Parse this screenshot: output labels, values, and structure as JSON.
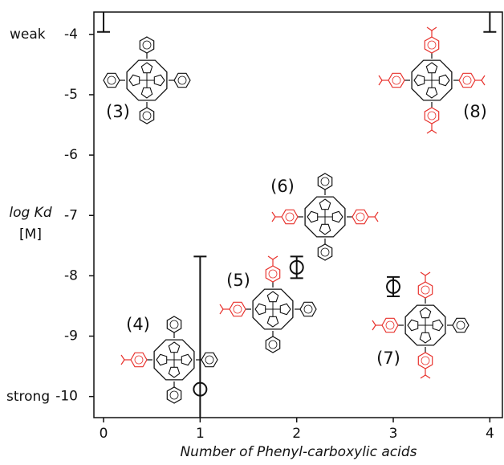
{
  "chart_data": {
    "type": "scatter",
    "xlabel": "Number of Phenyl-carboxylic acids",
    "ylabel": "log Kd",
    "ylabel_unit": "[M]",
    "weak_label": "weak",
    "strong_label": "strong",
    "x": [
      1,
      2,
      3
    ],
    "values": [
      -9.88,
      -7.86,
      -8.18
    ],
    "error_upper": [
      2.2,
      0.18,
      0.16
    ],
    "error_lower": [
      0.47,
      0.18,
      0.16
    ],
    "limits": {
      "x": [
        0,
        4
      ],
      "values": [
        -3.96,
        -3.96
      ]
    },
    "annotations": [
      "(3)",
      "(4)",
      "(5)",
      "(6)",
      "(7)",
      "(8)"
    ],
    "color": "#111111",
    "substituent_color": "#e8322d",
    "xlim": [
      -0.1,
      4.13
    ],
    "ylim": [
      -10.35,
      -3.63
    ],
    "xticks": [
      0,
      1,
      2,
      3,
      4
    ],
    "yticks": [
      -10,
      -9,
      -8,
      -7,
      -6,
      -5,
      -4
    ]
  }
}
